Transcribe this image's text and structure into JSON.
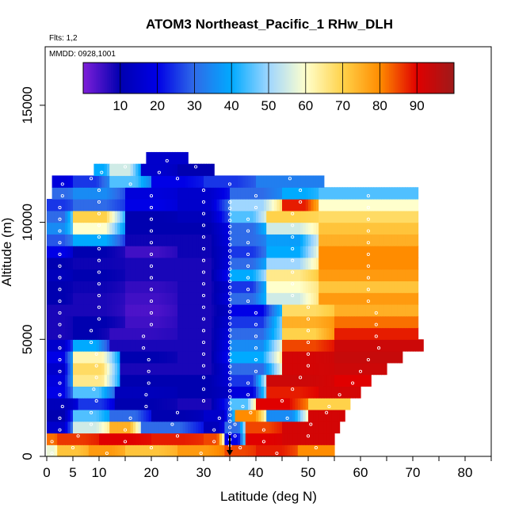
{
  "chart_data": {
    "type": "heatmap",
    "title": "ATOM3 Northeast_Pacific_1 RHw_DLH",
    "subtitle_flights": "Flts: 1,2",
    "subtitle_dates": "MMDD: 0928,1001",
    "xlabel": "Latitude (deg N)",
    "ylabel": "Altitude (m)",
    "xlim": [
      0,
      85
    ],
    "ylim": [
      0,
      17500
    ],
    "x_ticks": [
      0,
      5,
      10,
      20,
      30,
      40,
      50,
      60,
      70,
      80
    ],
    "x_minor_ticks": [
      0,
      5,
      10,
      15,
      20,
      25,
      30,
      35,
      40,
      45,
      50,
      55,
      60,
      65,
      70,
      75,
      80,
      85
    ],
    "y_ticks": [
      0,
      5000,
      10000,
      15000
    ],
    "colorbar": {
      "range": [
        0,
        100
      ],
      "ticks": [
        10,
        20,
        30,
        40,
        50,
        60,
        70,
        80,
        90
      ],
      "colors": [
        "#7f1fd9",
        "#0000b0",
        "#0000e6",
        "#2f6be8",
        "#00aaff",
        "#9fd6ff",
        "#ffffcc",
        "#ffd24a",
        "#ff8c00",
        "#e00000",
        "#9e1a1a"
      ]
    },
    "flight_marker_latitude": 35,
    "bands": [
      {
        "alt": 250,
        "segments": [
          [
            0,
            2,
            58
          ],
          [
            2,
            8,
            72
          ],
          [
            8,
            15,
            78
          ],
          [
            15,
            25,
            72
          ],
          [
            25,
            34,
            78
          ],
          [
            34,
            40,
            85
          ],
          [
            40,
            48,
            88
          ],
          [
            48,
            55,
            80
          ]
        ]
      },
      {
        "alt": 750,
        "segments": [
          [
            0,
            2,
            82
          ],
          [
            2,
            10,
            86
          ],
          [
            10,
            20,
            90
          ],
          [
            20,
            30,
            88
          ],
          [
            30,
            34,
            85
          ],
          [
            34,
            38,
            20
          ],
          [
            38,
            45,
            90
          ],
          [
            45,
            55,
            92
          ]
        ]
      },
      {
        "alt": 1250,
        "segments": [
          [
            0,
            5,
            15
          ],
          [
            5,
            12,
            55
          ],
          [
            12,
            18,
            75
          ],
          [
            18,
            30,
            30
          ],
          [
            30,
            34,
            12
          ],
          [
            34,
            38,
            30
          ],
          [
            38,
            45,
            85
          ],
          [
            45,
            56,
            92
          ]
        ]
      },
      {
        "alt": 1750,
        "segments": [
          [
            0,
            5,
            10
          ],
          [
            5,
            12,
            45
          ],
          [
            12,
            20,
            30
          ],
          [
            20,
            30,
            10
          ],
          [
            30,
            36,
            15
          ],
          [
            36,
            42,
            80
          ],
          [
            42,
            50,
            35
          ],
          [
            50,
            57,
            92
          ]
        ]
      },
      {
        "alt": 2250,
        "segments": [
          [
            0,
            6,
            12
          ],
          [
            6,
            13,
            25
          ],
          [
            13,
            25,
            10
          ],
          [
            25,
            35,
            8
          ],
          [
            35,
            40,
            45
          ],
          [
            40,
            50,
            90
          ],
          [
            50,
            58,
            70
          ]
        ]
      },
      {
        "alt": 2750,
        "segments": [
          [
            0,
            5,
            20
          ],
          [
            5,
            13,
            45
          ],
          [
            13,
            25,
            12
          ],
          [
            25,
            35,
            10
          ],
          [
            35,
            42,
            18
          ],
          [
            42,
            52,
            88
          ],
          [
            52,
            60,
            92
          ]
        ]
      },
      {
        "alt": 3250,
        "segments": [
          [
            0,
            5,
            18
          ],
          [
            5,
            14,
            65
          ],
          [
            14,
            25,
            10
          ],
          [
            25,
            35,
            10
          ],
          [
            35,
            42,
            25
          ],
          [
            42,
            55,
            93
          ],
          [
            55,
            62,
            90
          ]
        ]
      },
      {
        "alt": 3750,
        "segments": [
          [
            0,
            5,
            15
          ],
          [
            5,
            14,
            68
          ],
          [
            14,
            25,
            8
          ],
          [
            25,
            35,
            8
          ],
          [
            35,
            45,
            30
          ],
          [
            45,
            55,
            92
          ],
          [
            55,
            65,
            93
          ]
        ]
      },
      {
        "alt": 4250,
        "segments": [
          [
            0,
            5,
            20
          ],
          [
            5,
            14,
            62
          ],
          [
            14,
            25,
            10
          ],
          [
            25,
            35,
            8
          ],
          [
            35,
            45,
            40
          ],
          [
            45,
            55,
            92
          ],
          [
            55,
            68,
            94
          ]
        ]
      },
      {
        "alt": 4750,
        "segments": [
          [
            0,
            5,
            15
          ],
          [
            5,
            12,
            40
          ],
          [
            12,
            25,
            8
          ],
          [
            25,
            35,
            8
          ],
          [
            35,
            45,
            35
          ],
          [
            45,
            55,
            85
          ],
          [
            55,
            72,
            93
          ]
        ]
      },
      {
        "alt": 5250,
        "segments": [
          [
            0,
            5,
            8
          ],
          [
            5,
            12,
            10
          ],
          [
            12,
            25,
            6
          ],
          [
            25,
            35,
            8
          ],
          [
            35,
            45,
            30
          ],
          [
            45,
            55,
            70
          ],
          [
            55,
            71,
            88
          ]
        ]
      },
      {
        "alt": 5750,
        "segments": [
          [
            0,
            5,
            8
          ],
          [
            5,
            15,
            10
          ],
          [
            15,
            25,
            5
          ],
          [
            25,
            35,
            8
          ],
          [
            35,
            45,
            25
          ],
          [
            45,
            55,
            75
          ],
          [
            55,
            71,
            82
          ]
        ]
      },
      {
        "alt": 6250,
        "segments": [
          [
            0,
            5,
            8
          ],
          [
            5,
            15,
            8
          ],
          [
            15,
            25,
            4
          ],
          [
            25,
            35,
            8
          ],
          [
            35,
            45,
            20
          ],
          [
            45,
            55,
            68
          ],
          [
            55,
            71,
            75
          ]
        ]
      },
      {
        "alt": 6750,
        "segments": [
          [
            0,
            5,
            10
          ],
          [
            5,
            15,
            8
          ],
          [
            15,
            25,
            5
          ],
          [
            25,
            35,
            8
          ],
          [
            35,
            42,
            30
          ],
          [
            42,
            52,
            55
          ],
          [
            52,
            71,
            78
          ]
        ]
      },
      {
        "alt": 7250,
        "segments": [
          [
            0,
            5,
            10
          ],
          [
            5,
            15,
            9
          ],
          [
            15,
            25,
            6
          ],
          [
            25,
            35,
            8
          ],
          [
            35,
            42,
            25
          ],
          [
            42,
            52,
            60
          ],
          [
            52,
            71,
            72
          ]
        ]
      },
      {
        "alt": 7750,
        "segments": [
          [
            0,
            5,
            12
          ],
          [
            5,
            15,
            10
          ],
          [
            15,
            25,
            8
          ],
          [
            25,
            35,
            8
          ],
          [
            35,
            42,
            40
          ],
          [
            42,
            52,
            65
          ],
          [
            52,
            71,
            78
          ]
        ]
      },
      {
        "alt": 8250,
        "segments": [
          [
            0,
            5,
            10
          ],
          [
            5,
            15,
            9
          ],
          [
            15,
            25,
            8
          ],
          [
            25,
            35,
            8
          ],
          [
            35,
            42,
            30
          ],
          [
            42,
            52,
            50
          ],
          [
            52,
            71,
            80
          ]
        ]
      },
      {
        "alt": 8750,
        "segments": [
          [
            0,
            5,
            20
          ],
          [
            5,
            15,
            10
          ],
          [
            15,
            25,
            5
          ],
          [
            25,
            35,
            9
          ],
          [
            35,
            42,
            25
          ],
          [
            42,
            52,
            40
          ],
          [
            52,
            71,
            80
          ]
        ]
      },
      {
        "alt": 9250,
        "segments": [
          [
            0,
            5,
            28
          ],
          [
            5,
            15,
            40
          ],
          [
            15,
            25,
            9
          ],
          [
            25,
            35,
            9
          ],
          [
            35,
            42,
            30
          ],
          [
            42,
            52,
            38
          ],
          [
            52,
            71,
            75
          ]
        ]
      },
      {
        "alt": 9750,
        "segments": [
          [
            0,
            5,
            35
          ],
          [
            5,
            15,
            60
          ],
          [
            15,
            25,
            10
          ],
          [
            25,
            35,
            10
          ],
          [
            35,
            42,
            30
          ],
          [
            42,
            52,
            55
          ],
          [
            52,
            71,
            72
          ]
        ]
      },
      {
        "alt": 10250,
        "segments": [
          [
            0,
            5,
            30
          ],
          [
            5,
            15,
            70
          ],
          [
            15,
            25,
            10
          ],
          [
            25,
            35,
            12
          ],
          [
            35,
            42,
            45
          ],
          [
            42,
            52,
            70
          ],
          [
            52,
            71,
            68
          ]
        ]
      },
      {
        "alt": 10750,
        "segments": [
          [
            0,
            5,
            25
          ],
          [
            5,
            15,
            30
          ],
          [
            15,
            25,
            20
          ],
          [
            25,
            35,
            15
          ],
          [
            35,
            45,
            50
          ],
          [
            45,
            52,
            88
          ],
          [
            52,
            71,
            60
          ]
        ]
      },
      {
        "alt": 11250,
        "segments": [
          [
            1,
            5,
            30
          ],
          [
            5,
            15,
            35
          ],
          [
            15,
            25,
            18
          ],
          [
            25,
            35,
            15
          ],
          [
            35,
            45,
            30
          ],
          [
            45,
            52,
            40
          ],
          [
            52,
            71,
            45
          ]
        ]
      },
      {
        "alt": 11750,
        "segments": [
          [
            1,
            5,
            18
          ],
          [
            5,
            12,
            25
          ],
          [
            12,
            20,
            45
          ],
          [
            20,
            30,
            20
          ],
          [
            30,
            40,
            25
          ],
          [
            40,
            53,
            33
          ]
        ]
      },
      {
        "alt": 12250,
        "segments": [
          [
            9,
            12,
            40
          ],
          [
            12,
            18,
            55
          ],
          [
            18,
            25,
            15
          ],
          [
            25,
            32,
            10
          ]
        ]
      },
      {
        "alt": 12750,
        "segments": [
          [
            19,
            27,
            15
          ]
        ]
      }
    ]
  }
}
